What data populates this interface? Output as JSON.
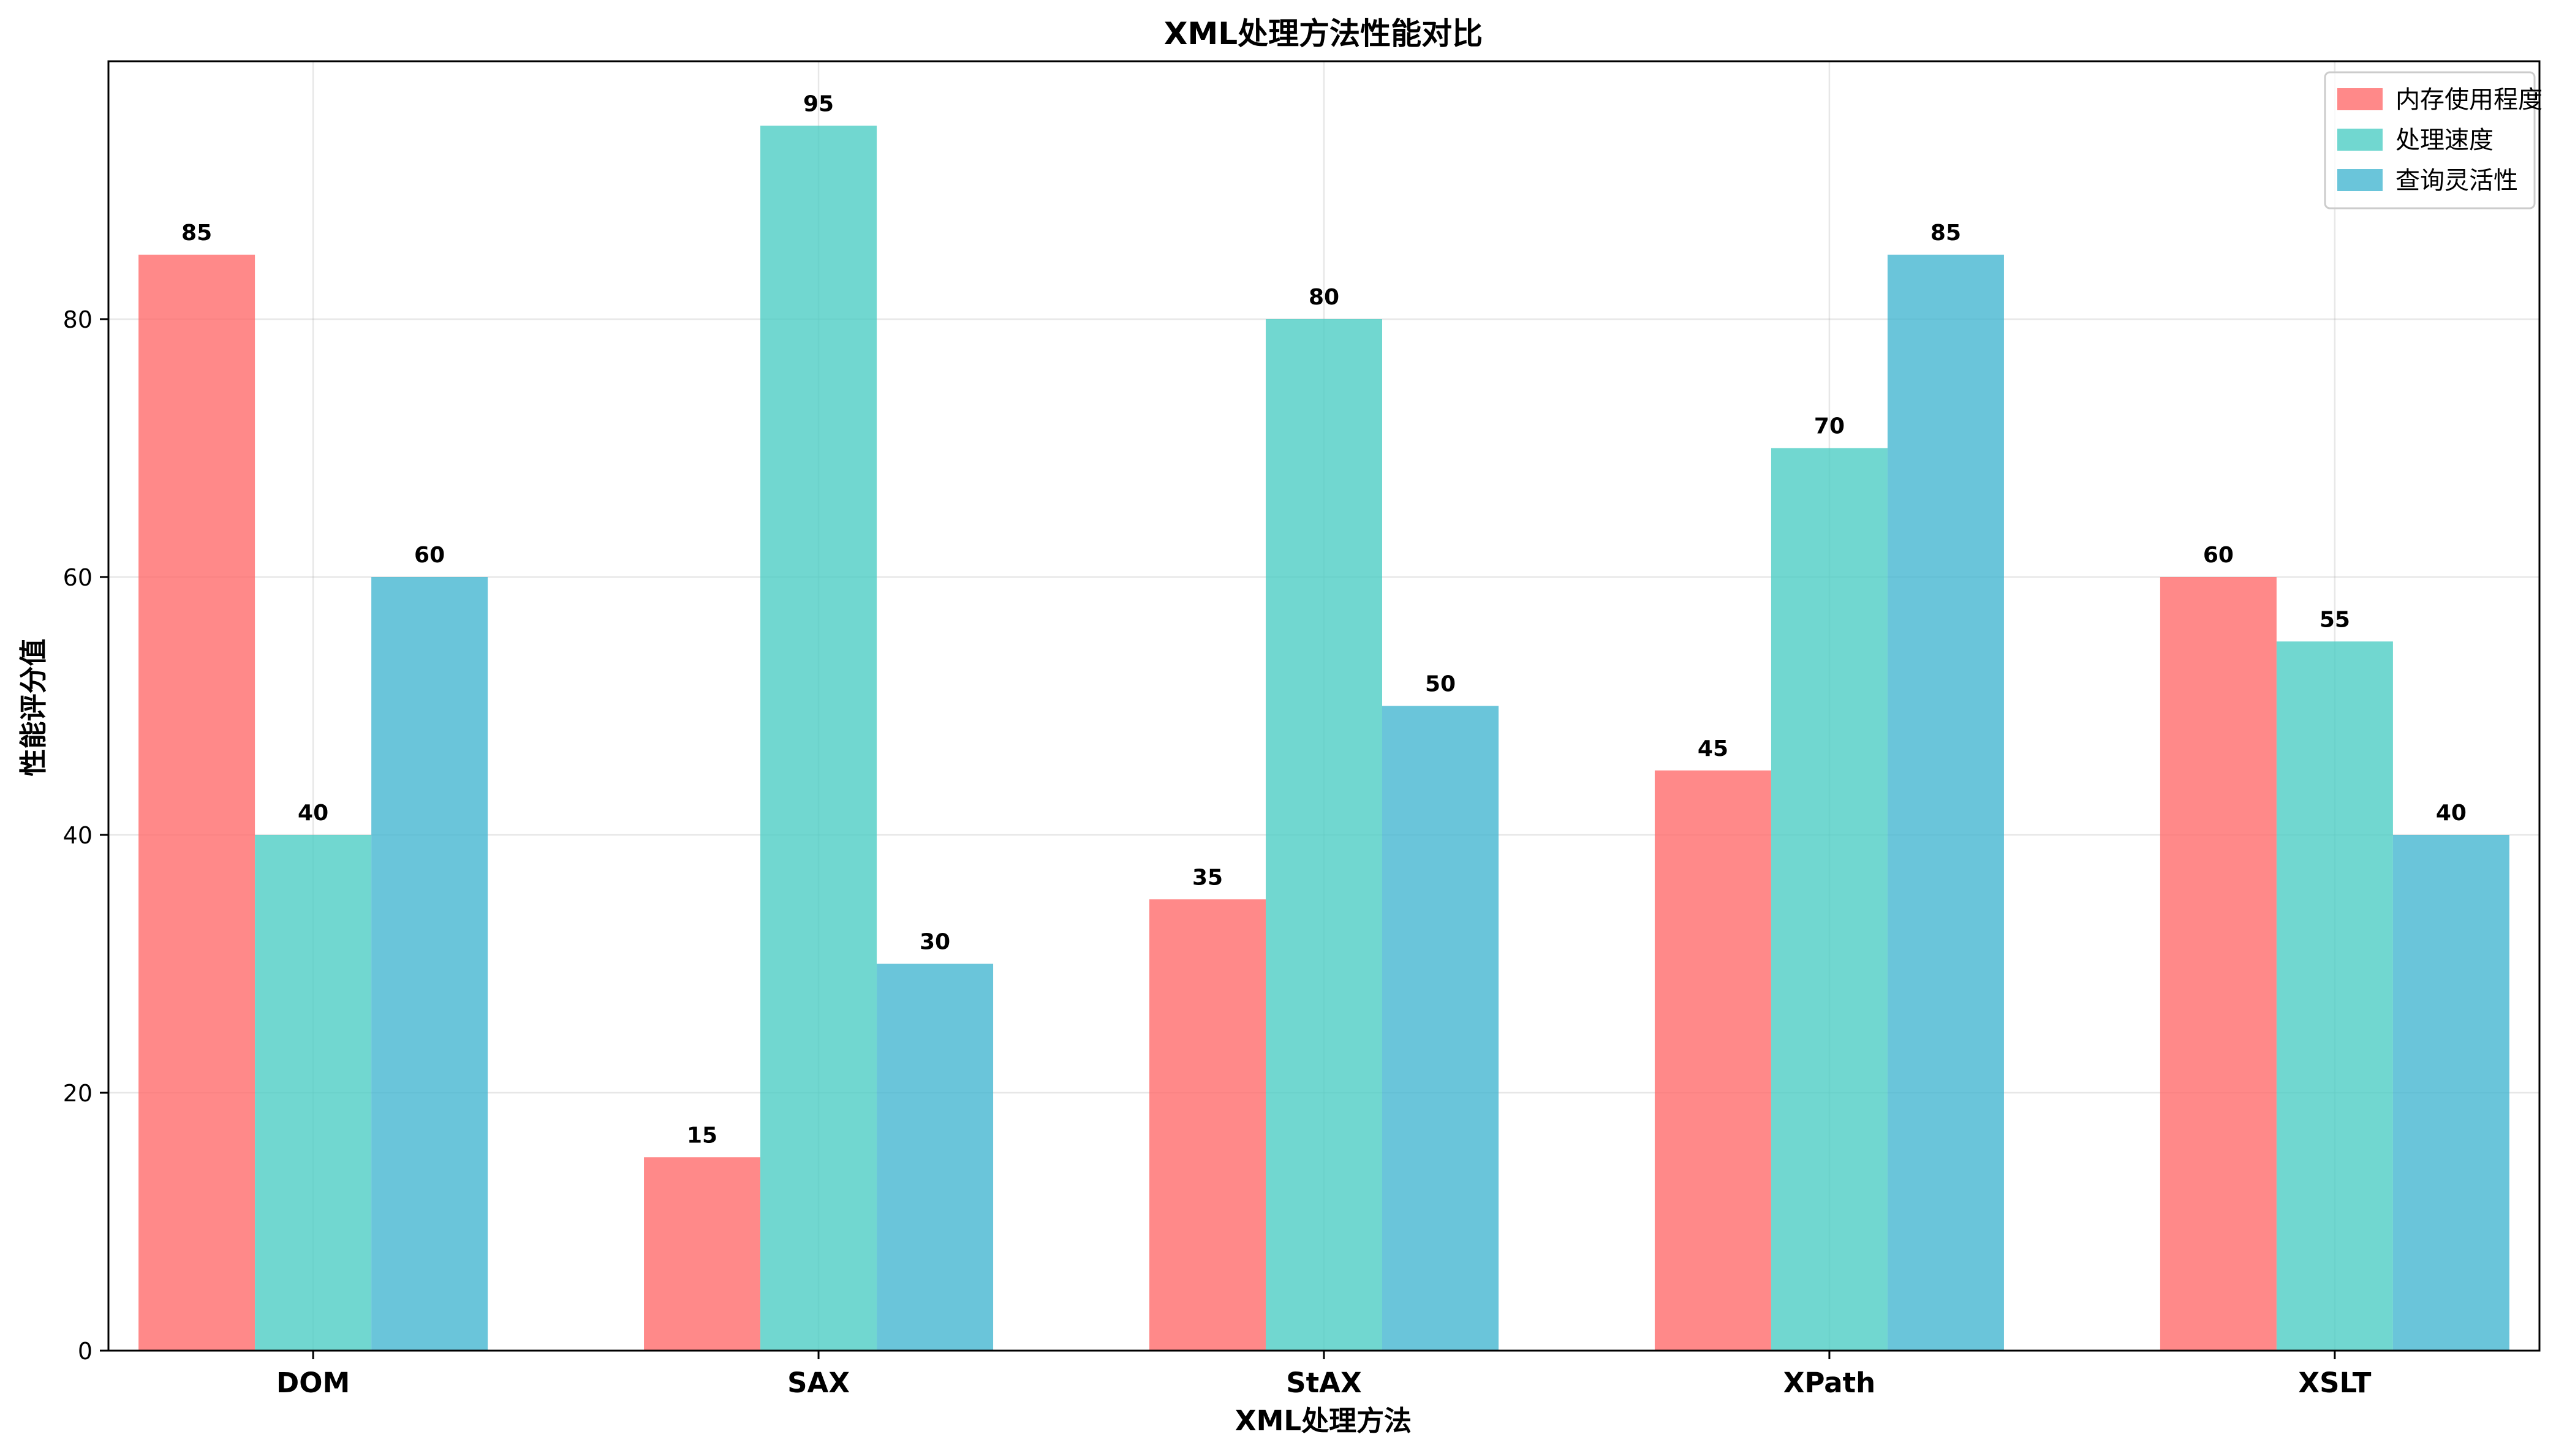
{
  "chart_data": {
    "type": "bar",
    "title": "XML处理方法性能对比",
    "xlabel": "XML处理方法",
    "ylabel": "性能评分值",
    "categories": [
      "DOM",
      "SAX",
      "StAX",
      "XPath",
      "XSLT"
    ],
    "series": [
      {
        "name": "内存使用程度",
        "color": "#FF6B6B",
        "values": [
          85,
          15,
          35,
          45,
          60
        ]
      },
      {
        "name": "处理速度",
        "color": "#4ECDC4",
        "values": [
          40,
          95,
          80,
          70,
          55
        ]
      },
      {
        "name": "查询灵活性",
        "color": "#45B7D1",
        "values": [
          60,
          30,
          50,
          85,
          40
        ]
      }
    ],
    "ylim": [
      0,
      100
    ],
    "yticks": [
      0,
      20,
      40,
      60,
      80
    ],
    "grid": true,
    "legend_position": "top-right",
    "bar_alpha": 0.8
  }
}
